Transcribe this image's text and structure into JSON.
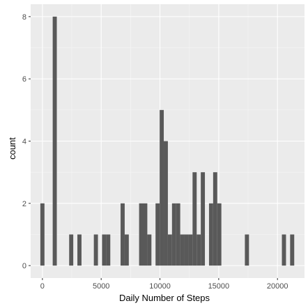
{
  "chart_data": {
    "type": "bar",
    "subtype": "histogram",
    "title": "",
    "xlabel": "Daily Number of Steps",
    "ylabel": "count",
    "xlim": [
      -1000,
      22300
    ],
    "ylim": [
      -0.4,
      8.4
    ],
    "x_ticks": [
      0,
      5000,
      10000,
      15000,
      20000
    ],
    "y_ticks": [
      0,
      2,
      4,
      6,
      8
    ],
    "bin_width": 350,
    "bins": [
      {
        "x": 0,
        "count": 2
      },
      {
        "x": 1050,
        "count": 8
      },
      {
        "x": 2450,
        "count": 1
      },
      {
        "x": 3150,
        "count": 1
      },
      {
        "x": 4550,
        "count": 1
      },
      {
        "x": 5250,
        "count": 1
      },
      {
        "x": 5600,
        "count": 1
      },
      {
        "x": 6825,
        "count": 2
      },
      {
        "x": 7175,
        "count": 1
      },
      {
        "x": 8400,
        "count": 2
      },
      {
        "x": 8750,
        "count": 2
      },
      {
        "x": 9100,
        "count": 1
      },
      {
        "x": 9800,
        "count": 2
      },
      {
        "x": 10150,
        "count": 5
      },
      {
        "x": 10500,
        "count": 4
      },
      {
        "x": 10850,
        "count": 1
      },
      {
        "x": 11200,
        "count": 2
      },
      {
        "x": 11550,
        "count": 2
      },
      {
        "x": 11900,
        "count": 1
      },
      {
        "x": 12250,
        "count": 1
      },
      {
        "x": 12600,
        "count": 1
      },
      {
        "x": 12950,
        "count": 3
      },
      {
        "x": 13300,
        "count": 1
      },
      {
        "x": 13650,
        "count": 3
      },
      {
        "x": 14350,
        "count": 2
      },
      {
        "x": 14700,
        "count": 3
      },
      {
        "x": 15050,
        "count": 2
      },
      {
        "x": 17400,
        "count": 1
      },
      {
        "x": 20550,
        "count": 1
      },
      {
        "x": 21250,
        "count": 1
      }
    ],
    "grid": true,
    "legend": "none",
    "colors": {
      "panel_background": "#ebebeb",
      "grid_major": "#ffffff",
      "grid_minor": "#f5f5f5",
      "bar_fill": "#595959",
      "tick_text": "#4d4d4d",
      "tick_mark": "#333333"
    }
  }
}
